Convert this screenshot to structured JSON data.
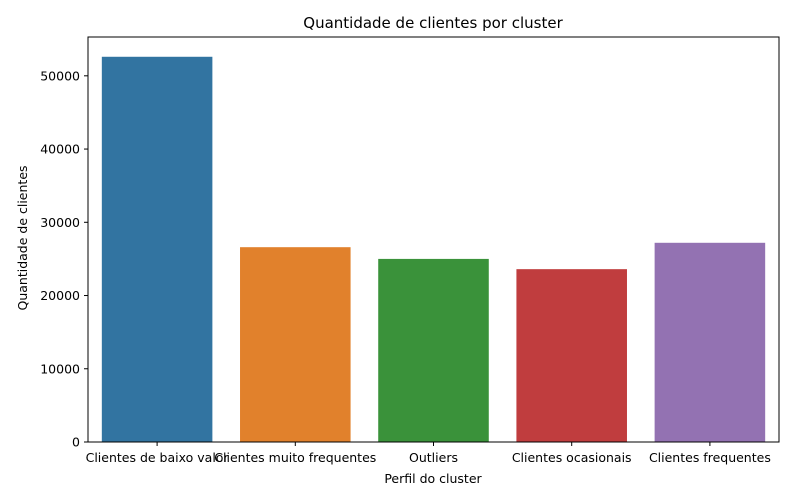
{
  "chart_data": {
    "type": "bar",
    "title": "Quantidade de clientes por cluster",
    "xlabel": "Perfil do cluster",
    "ylabel": "Quantidade de clientes",
    "categories": [
      "Clientes de baixo valor",
      "Clientes muito frequentes",
      "Outliers",
      "Clientes ocasionais",
      "Clientes frequentes"
    ],
    "values": [
      52600,
      26600,
      25000,
      23600,
      27200
    ],
    "colors": [
      "#3274a1",
      "#e1812c",
      "#3a923a",
      "#c03d3e",
      "#9372b2"
    ],
    "ylim": [
      0,
      55300
    ],
    "yticks": [
      0,
      10000,
      20000,
      30000,
      40000,
      50000
    ],
    "grid": false,
    "legend": "none"
  }
}
